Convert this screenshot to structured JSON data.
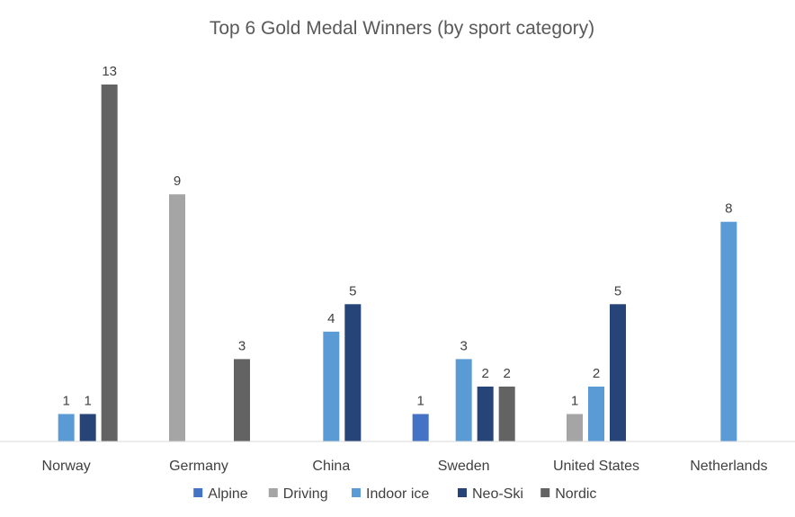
{
  "chart_data": {
    "type": "bar",
    "title": "Top 6 Gold Medal Winners (by sport category)",
    "xlabel": "",
    "ylabel": "",
    "ylim": [
      0,
      13
    ],
    "grid": false,
    "legend_position": "bottom",
    "categories": [
      "Norway",
      "Germany",
      "China",
      "Sweden",
      "United States",
      "Netherlands"
    ],
    "series": [
      {
        "name": "Alpine",
        "color": "#4472C4",
        "values": [
          null,
          null,
          null,
          1,
          null,
          null
        ]
      },
      {
        "name": "Driving",
        "color": "#A5A5A5",
        "values": [
          null,
          9,
          null,
          null,
          1,
          null
        ]
      },
      {
        "name": "Indoor ice",
        "color": "#5B9BD5",
        "values": [
          1,
          null,
          4,
          3,
          2,
          8
        ]
      },
      {
        "name": "Neo-Ski",
        "color": "#264478",
        "values": [
          1,
          null,
          5,
          2,
          5,
          null
        ]
      },
      {
        "name": "Nordic",
        "color": "#636363",
        "values": [
          13,
          3,
          null,
          2,
          null,
          null
        ]
      }
    ]
  }
}
